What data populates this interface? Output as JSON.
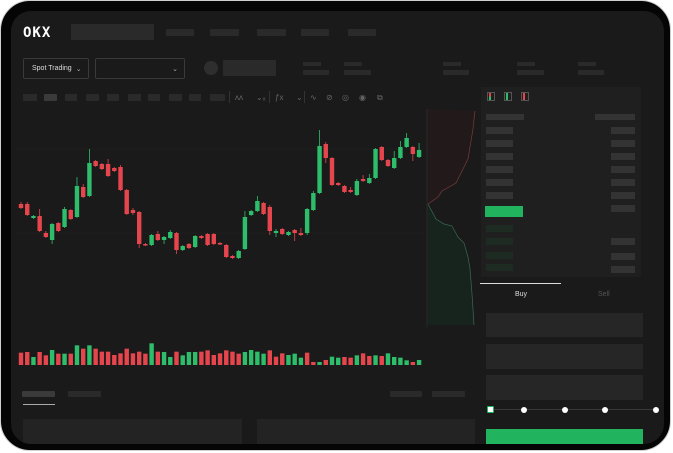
{
  "header": {
    "logo": "OKX",
    "market_selector": "Spot Trading",
    "pair_dropdown_icon": "chevron-down-icon"
  },
  "toolbar": {
    "icons": [
      "indicator-icon",
      "indicator-icon",
      "formula-icon",
      "chevron-down-icon",
      "trend-line-icon",
      "ruler-icon",
      "camera-icon",
      "settings-icon",
      "fullscreen-icon"
    ]
  },
  "orderbook": {
    "view_icons": [
      "orderbook-both-icon",
      "orderbook-bids-icon",
      "orderbook-asks-icon"
    ]
  },
  "trade_form": {
    "tabs": [
      {
        "label": "Buy",
        "active": true
      },
      {
        "label": "Sell",
        "active": false
      }
    ],
    "slider_percent": 0,
    "submit_color": "#22b35e"
  },
  "colors": {
    "up": "#2ebd6b",
    "down": "#e5464d",
    "accent": "#22b35e"
  },
  "chart_data": {
    "type": "candlestick",
    "ohlc": [
      [
        97,
        99,
        92,
        93
      ],
      [
        97,
        99,
        85,
        86
      ],
      [
        83,
        86,
        82,
        85
      ],
      [
        85,
        92,
        69,
        70
      ],
      [
        68,
        70,
        63,
        64
      ],
      [
        61,
        78,
        57,
        77
      ],
      [
        78,
        79,
        69,
        70
      ],
      [
        74,
        94,
        73,
        92
      ],
      [
        91,
        92,
        81,
        82
      ],
      [
        84,
        124,
        83,
        115
      ],
      [
        114,
        117,
        103,
        104
      ],
      [
        105,
        152,
        104,
        138
      ],
      [
        140,
        141,
        134,
        135
      ],
      [
        137,
        138,
        131,
        132
      ],
      [
        137,
        142,
        124,
        125
      ],
      [
        133,
        134,
        129,
        130
      ],
      [
        134,
        136,
        110,
        111
      ],
      [
        111,
        112,
        86,
        87
      ],
      [
        91,
        93,
        86,
        88
      ],
      [
        89,
        90,
        53,
        57
      ],
      [
        57,
        58,
        55,
        56
      ],
      [
        56,
        67,
        55,
        66
      ],
      [
        67,
        70,
        60,
        61
      ],
      [
        61,
        65,
        57,
        64
      ],
      [
        63,
        71,
        62,
        69
      ],
      [
        68,
        69,
        47,
        51
      ],
      [
        51,
        56,
        50,
        55
      ],
      [
        57,
        58,
        52,
        53
      ],
      [
        54,
        66,
        53,
        65
      ],
      [
        65,
        66,
        62,
        63
      ],
      [
        67,
        68,
        55,
        56
      ],
      [
        67,
        68,
        56,
        57
      ],
      [
        58,
        59,
        56,
        57
      ],
      [
        56,
        57,
        43,
        44
      ],
      [
        45,
        46,
        42,
        43
      ],
      [
        43,
        51,
        42,
        50
      ],
      [
        52,
        90,
        51,
        84
      ],
      [
        86,
        91,
        85,
        90
      ],
      [
        90,
        105,
        89,
        100
      ],
      [
        98,
        99,
        86,
        87
      ],
      [
        94,
        96,
        66,
        70
      ],
      [
        68,
        72,
        64,
        70
      ],
      [
        72,
        73,
        66,
        67
      ],
      [
        66,
        70,
        65,
        69
      ],
      [
        71,
        72,
        60,
        68
      ],
      [
        68,
        73,
        65,
        66
      ],
      [
        68,
        93,
        66,
        92
      ],
      [
        91,
        110,
        90,
        108
      ],
      [
        108,
        171,
        107,
        155
      ],
      [
        157,
        159,
        138,
        143
      ],
      [
        143,
        144,
        115,
        116
      ],
      [
        118,
        119,
        115,
        116
      ],
      [
        115,
        116,
        108,
        109
      ],
      [
        111,
        114,
        108,
        109
      ],
      [
        106,
        122,
        105,
        120
      ],
      [
        122,
        126,
        119,
        120
      ],
      [
        118,
        127,
        117,
        123
      ],
      [
        123,
        153,
        122,
        152
      ],
      [
        154,
        155,
        140,
        141
      ],
      [
        141,
        142,
        134,
        135
      ],
      [
        133,
        150,
        132,
        143
      ],
      [
        143,
        160,
        142,
        154
      ],
      [
        154,
        168,
        153,
        163
      ],
      [
        154,
        155,
        140,
        147
      ],
      [
        144,
        158,
        143,
        151
      ]
    ],
    "volume": [
      {
        "v": 37,
        "d": "down"
      },
      {
        "v": 39,
        "d": "down"
      },
      {
        "v": 24,
        "d": "up"
      },
      {
        "v": 39,
        "d": "down"
      },
      {
        "v": 29,
        "d": "down"
      },
      {
        "v": 45,
        "d": "up"
      },
      {
        "v": 34,
        "d": "down"
      },
      {
        "v": 34,
        "d": "up"
      },
      {
        "v": 34,
        "d": "down"
      },
      {
        "v": 59,
        "d": "up"
      },
      {
        "v": 49,
        "d": "down"
      },
      {
        "v": 59,
        "d": "up"
      },
      {
        "v": 49,
        "d": "down"
      },
      {
        "v": 40,
        "d": "down"
      },
      {
        "v": 40,
        "d": "down"
      },
      {
        "v": 30,
        "d": "down"
      },
      {
        "v": 35,
        "d": "down"
      },
      {
        "v": 49,
        "d": "down"
      },
      {
        "v": 35,
        "d": "down"
      },
      {
        "v": 40,
        "d": "down"
      },
      {
        "v": 34,
        "d": "down"
      },
      {
        "v": 65,
        "d": "up"
      },
      {
        "v": 40,
        "d": "down"
      },
      {
        "v": 39,
        "d": "up"
      },
      {
        "v": 24,
        "d": "up"
      },
      {
        "v": 40,
        "d": "down"
      },
      {
        "v": 29,
        "d": "up"
      },
      {
        "v": 39,
        "d": "up"
      },
      {
        "v": 39,
        "d": "up"
      },
      {
        "v": 40,
        "d": "down"
      },
      {
        "v": 44,
        "d": "down"
      },
      {
        "v": 30,
        "d": "down"
      },
      {
        "v": 35,
        "d": "down"
      },
      {
        "v": 44,
        "d": "down"
      },
      {
        "v": 40,
        "d": "down"
      },
      {
        "v": 34,
        "d": "down"
      },
      {
        "v": 39,
        "d": "up"
      },
      {
        "v": 45,
        "d": "up"
      },
      {
        "v": 40,
        "d": "up"
      },
      {
        "v": 34,
        "d": "up"
      },
      {
        "v": 44,
        "d": "down"
      },
      {
        "v": 25,
        "d": "down"
      },
      {
        "v": 35,
        "d": "down"
      },
      {
        "v": 30,
        "d": "up"
      },
      {
        "v": 34,
        "d": "up"
      },
      {
        "v": 22,
        "d": "up"
      },
      {
        "v": 37,
        "d": "down"
      },
      {
        "v": 9,
        "d": "down"
      },
      {
        "v": 9,
        "d": "up"
      },
      {
        "v": 15,
        "d": "down"
      },
      {
        "v": 25,
        "d": "up"
      },
      {
        "v": 22,
        "d": "up"
      },
      {
        "v": 24,
        "d": "down"
      },
      {
        "v": 22,
        "d": "down"
      },
      {
        "v": 29,
        "d": "up"
      },
      {
        "v": 35,
        "d": "down"
      },
      {
        "v": 27,
        "d": "down"
      },
      {
        "v": 29,
        "d": "up"
      },
      {
        "v": 27,
        "d": "down"
      },
      {
        "v": 35,
        "d": "up"
      },
      {
        "v": 24,
        "d": "up"
      },
      {
        "v": 22,
        "d": "up"
      },
      {
        "v": 14,
        "d": "up"
      },
      {
        "v": 9,
        "d": "down"
      },
      {
        "v": 15,
        "d": "up"
      }
    ]
  }
}
